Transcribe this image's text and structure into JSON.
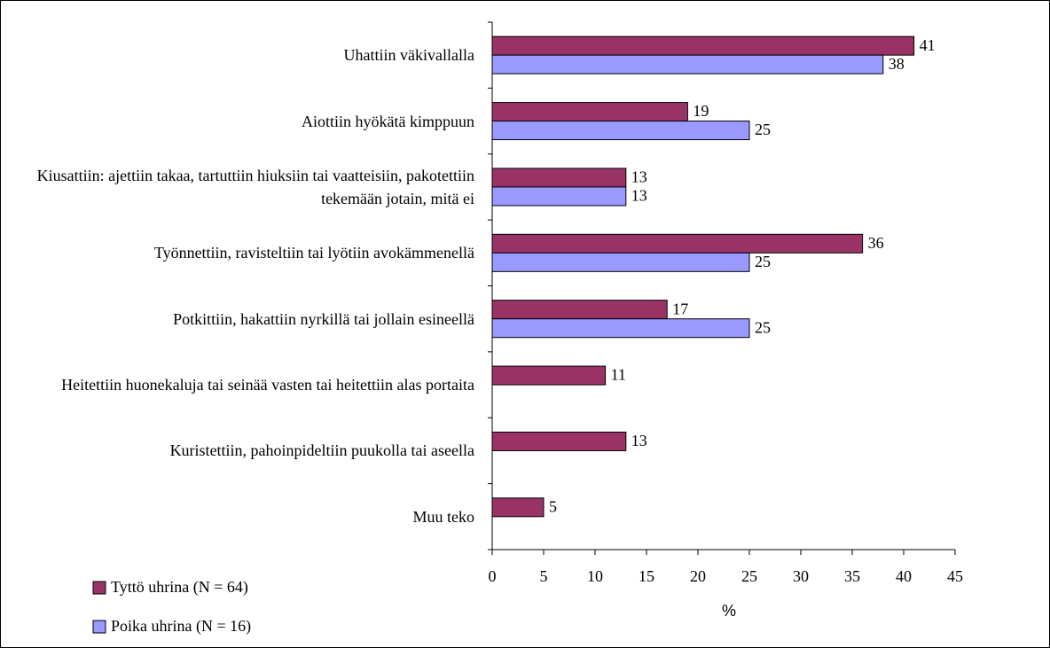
{
  "chart_data": {
    "type": "bar",
    "orientation": "horizontal",
    "categories": [
      "Uhattiin väkivallalla",
      "Aiottiin hyökätä kimppuun",
      "Kiusattiin: ajettiin takaa, tartuttiin hiuksiin tai vaatteisiin, pakotettiin tekemään jotain, mitä ei",
      "Työnnettiin, ravisteltiin tai lyötiin avokämmenellä",
      "Potkittiin, hakattiin nyrkillä tai jollain esineellä",
      "Heitettiin huonekaluja tai seinää vasten tai heitettiin alas portaita",
      "Kuristettiin, pahoinpideltiin puukolla tai aseella",
      "Muu teko"
    ],
    "series": [
      {
        "name": "Tyttö uhrina (N = 64)",
        "color": "#993366",
        "values": [
          41,
          19,
          13,
          36,
          17,
          11,
          13,
          5
        ]
      },
      {
        "name": "Poika uhrina (N = 16)",
        "color": "#9999ff",
        "values": [
          38,
          25,
          13,
          25,
          25,
          null,
          null,
          null
        ]
      }
    ],
    "xlabel": "%",
    "xlim": [
      0,
      45
    ],
    "xticks": [
      0,
      5,
      10,
      15,
      20,
      25,
      30,
      35,
      40,
      45
    ],
    "legend": "bottom-left"
  }
}
